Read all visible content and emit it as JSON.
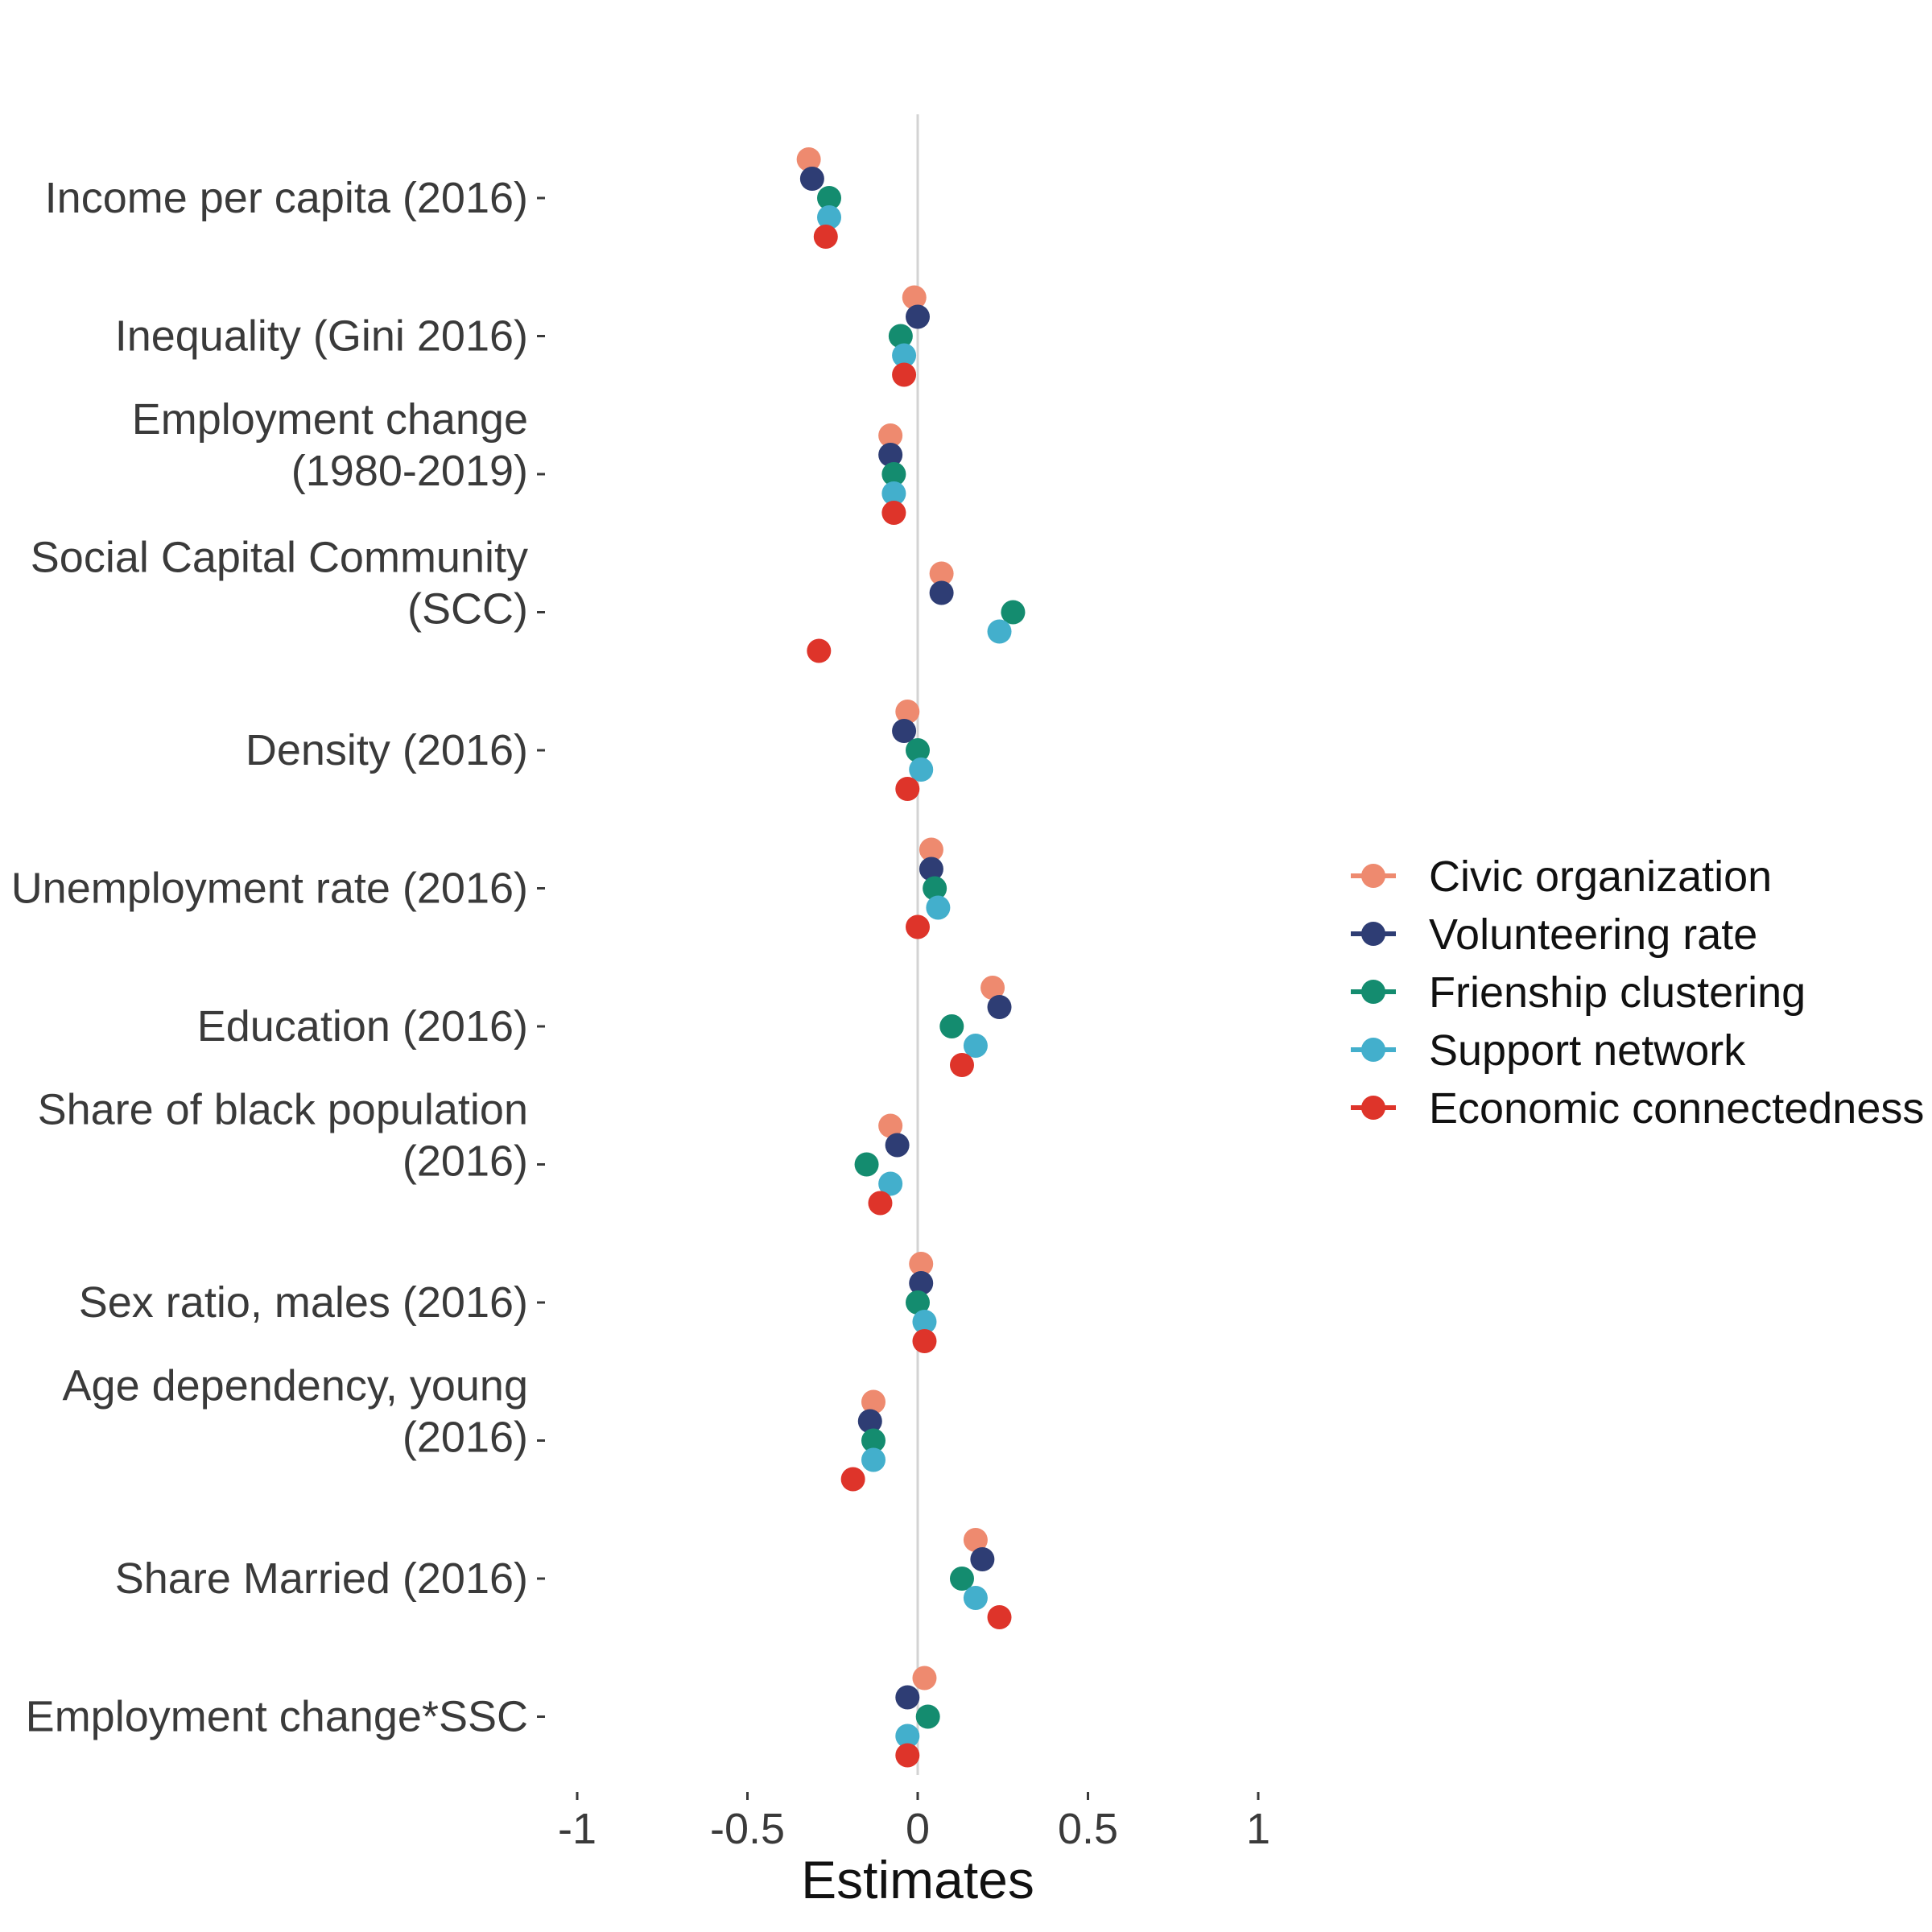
{
  "chart_data": {
    "type": "scatter",
    "title": "",
    "xlabel": "Estimates",
    "ylabel": "",
    "xlim": [
      -1,
      1
    ],
    "xticks": [
      -1,
      -0.5,
      0,
      0.5,
      1
    ],
    "xtick_labels": [
      "-1",
      "-0.5",
      "0",
      "0.5",
      "1"
    ],
    "zero_line": true,
    "grid": false,
    "legend_position": "right",
    "categories": [
      [
        "Income per capita (2016)"
      ],
      [
        "Inequality (Gini 2016)"
      ],
      [
        "Employment change",
        "(1980-2019)"
      ],
      [
        "Social Capital Community",
        "(SCC)"
      ],
      [
        "Density (2016)"
      ],
      [
        "Unemployment rate (2016)"
      ],
      [
        "Education (2016)"
      ],
      [
        "Share of black population",
        "(2016)"
      ],
      [
        "Sex ratio, males (2016)"
      ],
      [
        "Age dependency, young",
        "(2016)"
      ],
      [
        "Share Married (2016)"
      ],
      [
        "Employment change*SSC"
      ]
    ],
    "series": [
      {
        "name": "Civic organization",
        "color": "#EE8A6F",
        "values": [
          -0.32,
          -0.01,
          -0.08,
          0.07,
          -0.03,
          0.04,
          0.22,
          -0.08,
          0.01,
          -0.13,
          0.17,
          0.02
        ]
      },
      {
        "name": "Volunteering rate",
        "color": "#2E3D74",
        "values": [
          -0.31,
          0.0,
          -0.08,
          0.07,
          -0.04,
          0.04,
          0.24,
          -0.06,
          0.01,
          -0.14,
          0.19,
          -0.03
        ]
      },
      {
        "name": "Frienship clustering",
        "color": "#148C6F",
        "values": [
          -0.26,
          -0.05,
          -0.07,
          0.28,
          0.0,
          0.05,
          0.1,
          -0.15,
          0.0,
          -0.13,
          0.13,
          0.03
        ]
      },
      {
        "name": "Support network",
        "color": "#43AFCC",
        "values": [
          -0.26,
          -0.04,
          -0.07,
          0.24,
          0.01,
          0.06,
          0.17,
          -0.08,
          0.02,
          -0.13,
          0.17,
          -0.03
        ]
      },
      {
        "name": "Economic connectedness",
        "color": "#DE342A",
        "values": [
          -0.27,
          -0.04,
          -0.07,
          -0.29,
          -0.03,
          0.0,
          0.13,
          -0.11,
          0.02,
          -0.19,
          0.24,
          -0.03
        ]
      }
    ]
  }
}
